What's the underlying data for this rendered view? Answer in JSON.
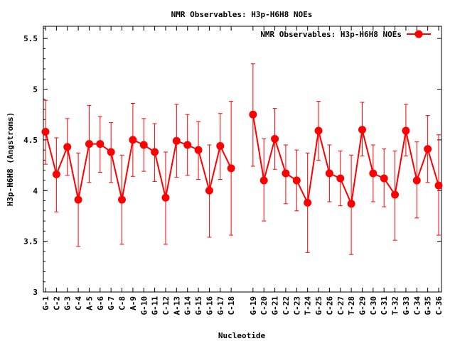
{
  "chart_data": {
    "type": "line",
    "title": "NMR Observables: H3p-H6H8 NOEs",
    "xlabel": "Nucleotide",
    "ylabel": "H3p-H6H8 (Angstroms)",
    "ylim": [
      3,
      5.62
    ],
    "yticks": [
      3,
      3.5,
      4,
      4.5,
      5,
      5.5
    ],
    "ytick_labels": [
      "3",
      "3.5",
      "4",
      "4.5",
      "5",
      "5.5"
    ],
    "legend": "top-right",
    "series": [
      {
        "name": "NMR Observables: H3p-H6H8 NOEs",
        "color": "#ff0000",
        "segments": [
          {
            "categories": [
              "G-1",
              "C-2",
              "G-3",
              "C-4",
              "A-5",
              "G-6",
              "G-7",
              "C-8",
              "A-9",
              "G-10",
              "G-11",
              "C-12",
              "A-13",
              "G-14",
              "G-15",
              "G-16",
              "G-17",
              "C-18"
            ],
            "values": [
              4.58,
              4.16,
              4.43,
              3.91,
              4.46,
              4.46,
              4.38,
              3.91,
              4.5,
              4.45,
              4.38,
              3.93,
              4.49,
              4.45,
              4.4,
              4.0,
              4.44,
              4.22
            ],
            "err_low": [
              4.26,
              3.79,
              4.15,
              3.45,
              4.08,
              4.18,
              4.08,
              3.47,
              4.14,
              4.19,
              4.09,
              3.47,
              4.13,
              4.15,
              4.11,
              3.54,
              4.11,
              3.56
            ],
            "err_high": [
              4.89,
              4.52,
              4.71,
              4.37,
              4.84,
              4.73,
              4.67,
              4.35,
              4.86,
              4.71,
              4.66,
              4.38,
              4.85,
              4.75,
              4.68,
              4.45,
              4.76,
              4.88
            ]
          },
          {
            "categories": [
              "G-19",
              "C-20",
              "G-21",
              "C-22",
              "C-23",
              "T-24",
              "G-25",
              "C-26",
              "C-27",
              "T-28",
              "G-29",
              "C-30",
              "C-31",
              "T-32",
              "G-33",
              "C-34",
              "G-35",
              "C-36"
            ],
            "values": [
              4.75,
              4.1,
              4.51,
              4.17,
              4.1,
              3.88,
              4.59,
              4.17,
              4.12,
              3.87,
              4.6,
              4.17,
              4.12,
              3.96,
              4.59,
              4.1,
              4.41,
              4.05
            ],
            "err_low": [
              4.24,
              3.7,
              4.21,
              3.87,
              3.8,
              3.39,
              4.3,
              3.89,
              3.85,
              3.37,
              4.34,
              3.89,
              3.84,
              3.51,
              4.34,
              3.73,
              4.08,
              3.56
            ],
            "err_high": [
              5.25,
              4.51,
              4.81,
              4.45,
              4.4,
              4.37,
              4.88,
              4.45,
              4.39,
              4.35,
              4.87,
              4.45,
              4.41,
              4.39,
              4.85,
              4.48,
              4.74,
              4.55
            ]
          }
        ]
      }
    ]
  }
}
